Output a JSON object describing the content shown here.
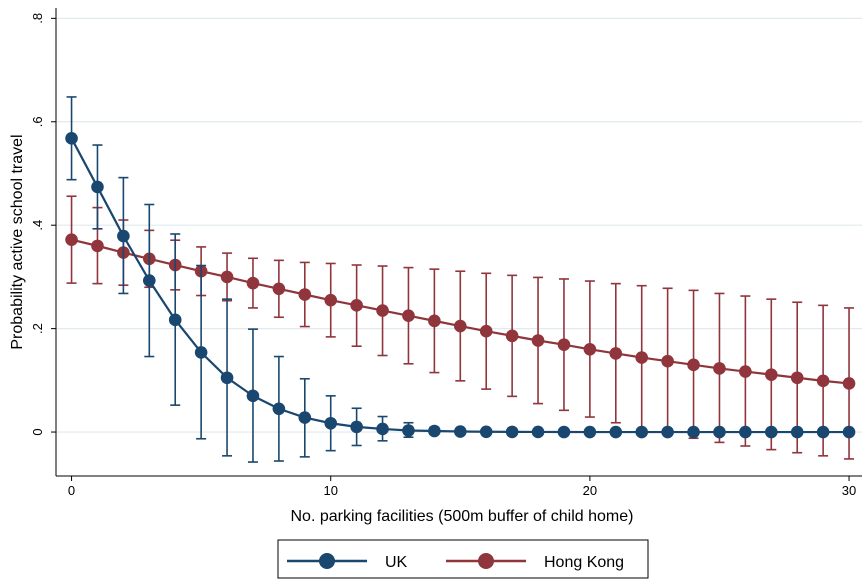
{
  "chart_data": {
    "type": "line",
    "title": "",
    "xlabel": "No. parking facilities (500m buffer of child home)",
    "ylabel": "Probability active school travel",
    "xlim": [
      -0.6,
      30.5
    ],
    "ylim": [
      -0.085,
      0.82
    ],
    "xticks": [
      0,
      10,
      20,
      30
    ],
    "xtick_labels": [
      "0",
      "10",
      "20",
      "30"
    ],
    "yticks": [
      0,
      0.2,
      0.4,
      0.6,
      0.8
    ],
    "ytick_labels": [
      "0",
      ".2",
      ".4",
      ".6",
      ".8"
    ],
    "grid": true,
    "legend_position": "bottom",
    "colors": {
      "UK": "#1a476f",
      "Hong Kong": "#90353b",
      "grid": "#e1eaee"
    },
    "x": [
      0,
      1,
      2,
      3,
      4,
      5,
      6,
      7,
      8,
      9,
      10,
      11,
      12,
      13,
      14,
      15,
      16,
      17,
      18,
      19,
      20,
      21,
      22,
      23,
      24,
      25,
      26,
      27,
      28,
      29,
      30
    ],
    "series": [
      {
        "name": "UK",
        "color": "#1a476f",
        "values": [
          0.568,
          0.474,
          0.379,
          0.293,
          0.217,
          0.154,
          0.105,
          0.07,
          0.045,
          0.028,
          0.017,
          0.01,
          0.006,
          0.003,
          0.002,
          0.001,
          0.0005,
          0.0003,
          0.0002,
          0.0001,
          0.0,
          0.0,
          0.0,
          0.0,
          0.0,
          0.0,
          0.0,
          0.0,
          0.0,
          0.0,
          0.0
        ],
        "lower": [
          0.488,
          0.393,
          0.268,
          0.146,
          0.052,
          -0.013,
          -0.046,
          -0.058,
          -0.056,
          -0.048,
          -0.036,
          -0.026,
          -0.017,
          -0.01,
          -0.004,
          -0.002,
          -0.001,
          -0.001,
          0,
          0,
          0,
          0,
          0,
          0,
          0,
          0,
          0,
          0,
          0,
          0,
          0
        ],
        "upper": [
          0.648,
          0.555,
          0.492,
          0.44,
          0.383,
          0.322,
          0.257,
          0.199,
          0.146,
          0.103,
          0.07,
          0.046,
          0.03,
          0.018,
          0.009,
          0.004,
          0.002,
          0.001,
          0.0005,
          0.0002,
          0,
          0,
          0,
          0,
          0,
          0,
          0,
          0,
          0,
          0,
          0
        ]
      },
      {
        "name": "Hong Kong",
        "color": "#90353b",
        "values": [
          0.372,
          0.36,
          0.347,
          0.335,
          0.323,
          0.311,
          0.3,
          0.288,
          0.277,
          0.266,
          0.255,
          0.245,
          0.235,
          0.225,
          0.215,
          0.205,
          0.195,
          0.186,
          0.177,
          0.169,
          0.16,
          0.152,
          0.144,
          0.137,
          0.13,
          0.123,
          0.117,
          0.111,
          0.105,
          0.099,
          0.094
        ],
        "lower": [
          0.288,
          0.287,
          0.284,
          0.28,
          0.275,
          0.264,
          0.254,
          0.24,
          0.222,
          0.204,
          0.184,
          0.166,
          0.148,
          0.132,
          0.115,
          0.099,
          0.083,
          0.069,
          0.055,
          0.042,
          0.029,
          0.018,
          0.006,
          -0.004,
          -0.012,
          -0.02,
          -0.027,
          -0.034,
          -0.04,
          -0.046,
          -0.052
        ],
        "upper": [
          0.456,
          0.434,
          0.41,
          0.39,
          0.371,
          0.358,
          0.346,
          0.336,
          0.332,
          0.328,
          0.326,
          0.323,
          0.321,
          0.318,
          0.315,
          0.311,
          0.307,
          0.303,
          0.299,
          0.296,
          0.292,
          0.287,
          0.283,
          0.278,
          0.274,
          0.268,
          0.263,
          0.257,
          0.251,
          0.245,
          0.24
        ]
      }
    ]
  }
}
